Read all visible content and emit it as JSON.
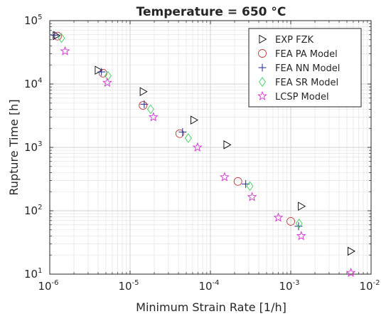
{
  "chart_data": {
    "type": "scatter",
    "title": "Temperature = 650 °C",
    "xlabel": "Minimum Strain Rate [1/h]",
    "ylabel": "Rupture Time [h]",
    "x_scale": "log",
    "y_scale": "log",
    "xlim": [
      1e-06,
      0.01
    ],
    "ylim": [
      10,
      100000
    ],
    "x_tick_labels": [
      {
        "base": "10",
        "exp": "-6"
      },
      {
        "base": "10",
        "exp": "-5"
      },
      {
        "base": "10",
        "exp": "-4"
      },
      {
        "base": "10",
        "exp": "-3"
      },
      {
        "base": "10",
        "exp": "-2"
      }
    ],
    "y_tick_labels": [
      {
        "base": "10",
        "exp": "1"
      },
      {
        "base": "10",
        "exp": "2"
      },
      {
        "base": "10",
        "exp": "3"
      },
      {
        "base": "10",
        "exp": "4"
      },
      {
        "base": "10",
        "exp": "5"
      }
    ],
    "grid": true,
    "legend_position": "top-right",
    "series": [
      {
        "name": "EXP FZK",
        "marker": "triangle-right",
        "color": "#000000",
        "points": [
          [
            1.2e-06,
            58000
          ],
          [
            4e-06,
            16500
          ],
          [
            1.45e-05,
            7600
          ],
          [
            6.2e-05,
            2700
          ],
          [
            0.00016,
            1100
          ],
          [
            0.00135,
            118
          ],
          [
            0.0056,
            23
          ]
        ]
      },
      {
        "name": "FEA PA Model",
        "marker": "circle",
        "color": "#c0393b",
        "points": [
          [
            1.25e-06,
            57000
          ],
          [
            4.6e-06,
            14800
          ],
          [
            1.45e-05,
            4600
          ],
          [
            4.15e-05,
            1650
          ],
          [
            0.00022,
            290
          ],
          [
            0.001,
            68
          ]
        ]
      },
      {
        "name": "FEA NN  Model",
        "marker": "plus",
        "color": "#1f2a8a",
        "points": [
          [
            1.15e-06,
            59000
          ],
          [
            4.4e-06,
            15500
          ],
          [
            1.5e-05,
            4800
          ],
          [
            4.5e-05,
            1750
          ],
          [
            0.000275,
            265
          ],
          [
            0.00125,
            57
          ]
        ]
      },
      {
        "name": "FEA SR Model",
        "marker": "diamond",
        "color": "#3fcf5f",
        "points": [
          [
            1.4e-06,
            53000
          ],
          [
            5.3e-06,
            13500
          ],
          [
            1.8e-05,
            4000
          ],
          [
            5.3e-05,
            1400
          ],
          [
            0.00031,
            245
          ],
          [
            0.00127,
            63
          ]
        ]
      },
      {
        "name": "LCSP Model",
        "marker": "star",
        "color": "#cc33cc",
        "points": [
          [
            1.55e-06,
            33000
          ],
          [
            5.2e-06,
            10500
          ],
          [
            1.95e-05,
            3000
          ],
          [
            6.9e-05,
            1000
          ],
          [
            0.00015,
            340
          ],
          [
            0.00033,
            165
          ],
          [
            0.0007,
            78
          ],
          [
            0.00135,
            40
          ],
          [
            0.0056,
            10.5
          ]
        ]
      }
    ]
  }
}
